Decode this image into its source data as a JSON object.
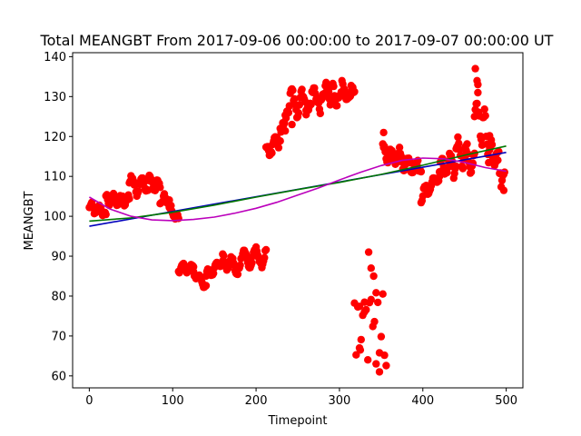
{
  "chart_data": {
    "type": "scatter",
    "title": "Total MEANGBT From 2017-09-06 00:00:00 to 2017-09-07 00:00:00 UT",
    "xlabel": "Timepoint",
    "ylabel": "MEANGBT",
    "xlim": [
      -20,
      520
    ],
    "ylim": [
      57,
      141
    ],
    "xticks": [
      0,
      100,
      200,
      300,
      400,
      500
    ],
    "yticks": [
      60,
      70,
      80,
      90,
      100,
      110,
      120,
      130,
      140
    ],
    "grid": false,
    "colors": {
      "points": "#ff0000",
      "linear_fit": "#0000bb",
      "quadratic_fit": "#007700",
      "cubic_fit": "#bb00bb"
    },
    "segments": [
      {
        "x0": 0,
        "x1": 20,
        "y0": 102,
        "y1": 101,
        "amp": 1.0,
        "period": 10,
        "jit": 0.7,
        "step": 1
      },
      {
        "x0": 20,
        "x1": 48,
        "y0": 104,
        "y1": 104,
        "amp": 1.2,
        "period": 9,
        "jit": 0.8,
        "step": 1
      },
      {
        "x0": 48,
        "x1": 70,
        "y0": 108,
        "y1": 108,
        "amp": 2.0,
        "period": 12,
        "jit": 1.0,
        "step": 1
      },
      {
        "x0": 70,
        "x1": 85,
        "y0": 109,
        "y1": 107,
        "amp": 1.5,
        "period": 10,
        "jit": 0.8,
        "step": 1
      },
      {
        "x0": 85,
        "x1": 96,
        "y0": 104,
        "y1": 104,
        "amp": 1.0,
        "period": 8,
        "jit": 0.6,
        "step": 1
      },
      {
        "x0": 96,
        "x1": 107,
        "y0": 102,
        "y1": 99,
        "amp": 0.8,
        "period": 8,
        "jit": 0.5,
        "step": 1
      },
      {
        "x0": 107,
        "x1": 125,
        "y0": 87,
        "y1": 87,
        "amp": 0.8,
        "period": 10,
        "jit": 0.4,
        "step": 1
      },
      {
        "x0": 125,
        "x1": 140,
        "y0": 86,
        "y1": 82.5,
        "amp": 0.8,
        "period": 10,
        "jit": 0.3,
        "step": 1
      },
      {
        "x0": 140,
        "x1": 160,
        "y0": 85,
        "y1": 89,
        "amp": 1.2,
        "period": 10,
        "jit": 0.4,
        "step": 1
      },
      {
        "x0": 160,
        "x1": 178,
        "y0": 89,
        "y1": 87,
        "amp": 1.8,
        "period": 12,
        "jit": 0.4,
        "step": 1
      },
      {
        "x0": 178,
        "x1": 212,
        "y0": 89,
        "y1": 90,
        "amp": 2.3,
        "period": 14,
        "jit": 0.5,
        "step": 1
      },
      {
        "x0": 212,
        "x1": 235,
        "y0": 115,
        "y1": 122,
        "amp": 1.5,
        "period": 10,
        "jit": 1.0,
        "step": 1
      },
      {
        "x0": 235,
        "x1": 260,
        "y0": 128,
        "y1": 129,
        "amp": 3.0,
        "period": 12,
        "jit": 1.5,
        "step": 1
      },
      {
        "x0": 260,
        "x1": 290,
        "y0": 129,
        "y1": 130,
        "amp": 2.5,
        "period": 14,
        "jit": 1.5,
        "step": 1
      },
      {
        "x0": 290,
        "x1": 318,
        "y0": 131,
        "y1": 130,
        "amp": 2.0,
        "period": 12,
        "jit": 1.5,
        "step": 1
      },
      {
        "x0": 318,
        "x1": 356,
        "y0": 76,
        "y1": 72,
        "amp": 6.0,
        "period": 7,
        "jit": 5.0,
        "step": 2
      },
      {
        "x0": 352,
        "x1": 372,
        "y0": 116,
        "y1": 115,
        "amp": 1.5,
        "period": 10,
        "jit": 1.0,
        "step": 1
      },
      {
        "x0": 372,
        "x1": 398,
        "y0": 114,
        "y1": 112,
        "amp": 1.5,
        "period": 10,
        "jit": 1.0,
        "step": 1
      },
      {
        "x0": 398,
        "x1": 420,
        "y0": 105,
        "y1": 110,
        "amp": 1.2,
        "period": 10,
        "jit": 0.7,
        "step": 1
      },
      {
        "x0": 420,
        "x1": 440,
        "y0": 112,
        "y1": 113,
        "amp": 2.5,
        "period": 10,
        "jit": 1.2,
        "step": 1
      },
      {
        "x0": 440,
        "x1": 462,
        "y0": 117,
        "y1": 113,
        "amp": 2.5,
        "period": 10,
        "jit": 1.2,
        "step": 1
      },
      {
        "x0": 462,
        "x1": 480,
        "y0": 128,
        "y1": 118,
        "amp": 4.0,
        "period": 8,
        "jit": 2.5,
        "step": 1
      },
      {
        "x0": 480,
        "x1": 498,
        "y0": 118,
        "y1": 110,
        "amp": 2.5,
        "period": 8,
        "jit": 2.0,
        "step": 1
      }
    ],
    "extra_points": [
      [
        463,
        137
      ],
      [
        465,
        134
      ],
      [
        466,
        133
      ],
      [
        353,
        121
      ],
      [
        335,
        91
      ],
      [
        338,
        87
      ],
      [
        341,
        85
      ],
      [
        348,
        61
      ],
      [
        344,
        63
      ],
      [
        325,
        66.5
      ],
      [
        324,
        67
      ],
      [
        330,
        76
      ],
      [
        497,
        106.5
      ],
      [
        229,
        122
      ],
      [
        243,
        123
      ]
    ],
    "lines": [
      {
        "name": "linear fit",
        "x": [
          0,
          500
        ],
        "y": [
          97.5,
          116
        ]
      },
      {
        "name": "quadratic fit",
        "x": [
          0,
          50,
          100,
          150,
          200,
          250,
          300,
          350,
          400,
          450,
          500
        ],
        "y": [
          98.8,
          99.6,
          101.0,
          102.8,
          104.8,
          106.7,
          108.5,
          110.5,
          112.8,
          115.3,
          117.6
        ]
      },
      {
        "name": "cubic fit",
        "x": [
          0,
          25,
          50,
          75,
          100,
          125,
          150,
          175,
          200,
          225,
          250,
          275,
          300,
          325,
          350,
          375,
          400,
          425,
          450,
          475,
          500
        ],
        "y": [
          104.8,
          101.8,
          100.0,
          99.1,
          98.9,
          99.2,
          99.8,
          100.8,
          102.0,
          103.5,
          105.3,
          107.1,
          109.1,
          111.0,
          112.7,
          114.0,
          114.6,
          114.4,
          113.5,
          112.2,
          111.3
        ]
      }
    ]
  }
}
